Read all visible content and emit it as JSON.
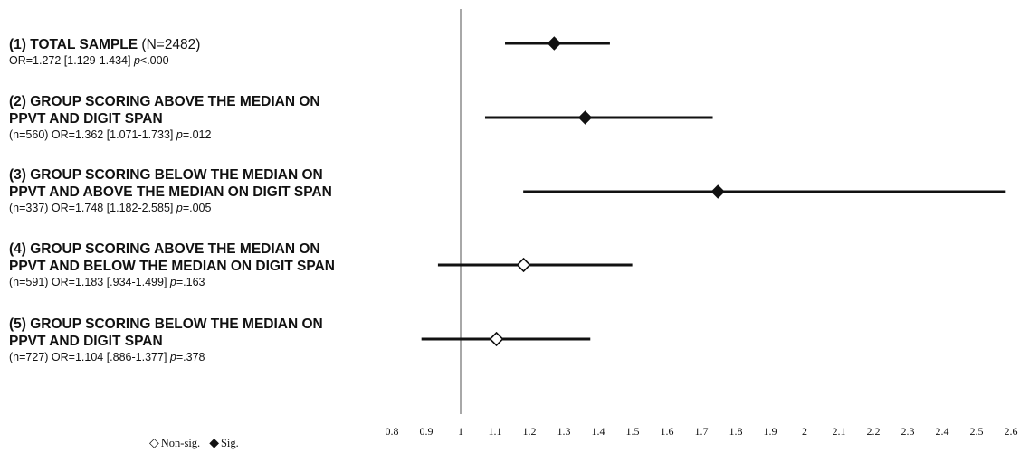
{
  "chart_data": {
    "type": "forest",
    "xlim": [
      0.8,
      2.6
    ],
    "x_ticks": [
      "0.8",
      "0.9",
      "1",
      "1.1",
      "1.2",
      "1.3",
      "1.4",
      "1.5",
      "1.6",
      "1.7",
      "1.8",
      "1.9",
      "2",
      "2.1",
      "2.2",
      "2.3",
      "2.4",
      "2.5",
      "2.6"
    ],
    "reference_line": 1,
    "grid": false,
    "legend": {
      "nonsig_symbol": "◇",
      "nonsig_label": "Non-sig.",
      "sig_symbol": "◆",
      "sig_label": "Sig."
    },
    "rows": [
      {
        "title": "(1) TOTAL SAMPLE",
        "title_extra": "(N=2482)",
        "title_line2": "",
        "stats_pre": "OR=1.272 [1.129-1.434] ",
        "p_letter": "p",
        "stats_post": "<.000",
        "or": 1.272,
        "ci_low": 1.129,
        "ci_high": 1.434,
        "significant": true
      },
      {
        "title": "(2) GROUP SCORING ABOVE THE MEDIAN ON",
        "title_extra": "",
        "title_line2": "PPVT AND DIGIT SPAN",
        "stats_pre": "(n=560) OR=1.362 [1.071-1.733] ",
        "p_letter": "p",
        "stats_post": "=.012",
        "or": 1.362,
        "ci_low": 1.071,
        "ci_high": 1.733,
        "significant": true
      },
      {
        "title": "(3) GROUP SCORING BELOW THE MEDIAN ON",
        "title_extra": "",
        "title_line2": "PPVT AND ABOVE THE MEDIAN ON DIGIT SPAN",
        "stats_pre": "(n=337) OR=1.748 [1.182-2.585] ",
        "p_letter": "p",
        "stats_post": "=.005",
        "or": 1.748,
        "ci_low": 1.182,
        "ci_high": 2.585,
        "significant": true
      },
      {
        "title": "(4) GROUP SCORING ABOVE THE MEDIAN ON",
        "title_extra": "",
        "title_line2": "PPVT AND BELOW THE MEDIAN ON DIGIT SPAN",
        "stats_pre": "(n=591) OR=1.183 [.934-1.499] ",
        "p_letter": "p",
        "stats_post": "=.163",
        "or": 1.183,
        "ci_low": 0.934,
        "ci_high": 1.499,
        "significant": false
      },
      {
        "title": "(5) GROUP SCORING BELOW THE MEDIAN ON",
        "title_extra": "",
        "title_line2": "PPVT AND DIGIT SPAN",
        "stats_pre": "(n=727) OR=1.104 [.886-1.377] ",
        "p_letter": "p",
        "stats_post": "=.378",
        "or": 1.104,
        "ci_low": 0.886,
        "ci_high": 1.377,
        "significant": false
      }
    ]
  }
}
